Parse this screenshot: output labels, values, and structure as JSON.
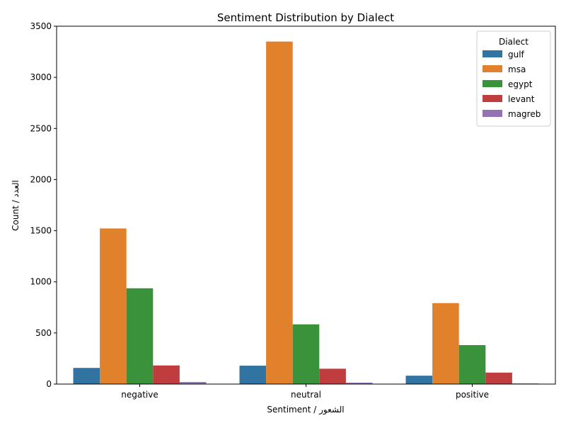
{
  "chart_data": {
    "type": "bar",
    "title": "Sentiment Distribution by Dialect",
    "xlabel": "Sentiment / الشعور",
    "ylabel": "Count / العدد",
    "categories": [
      "negative",
      "neutral",
      "positive"
    ],
    "ylim": [
      0,
      3500
    ],
    "yticks": [
      0,
      500,
      1000,
      1500,
      2000,
      2500,
      3000,
      3500
    ],
    "legend": {
      "title": "Dialect",
      "placement": "top-right"
    },
    "grid": false,
    "series": [
      {
        "name": "gulf",
        "color": "#3274a1",
        "values": [
          158,
          180,
          82
        ]
      },
      {
        "name": "msa",
        "color": "#e1812c",
        "values": [
          1522,
          3350,
          792
        ]
      },
      {
        "name": "egypt",
        "color": "#3a923a",
        "values": [
          937,
          584,
          381
        ]
      },
      {
        "name": "levant",
        "color": "#c03d3e",
        "values": [
          182,
          150,
          112
        ]
      },
      {
        "name": "magreb",
        "color": "#9372b2",
        "values": [
          20,
          14,
          6
        ]
      }
    ]
  }
}
